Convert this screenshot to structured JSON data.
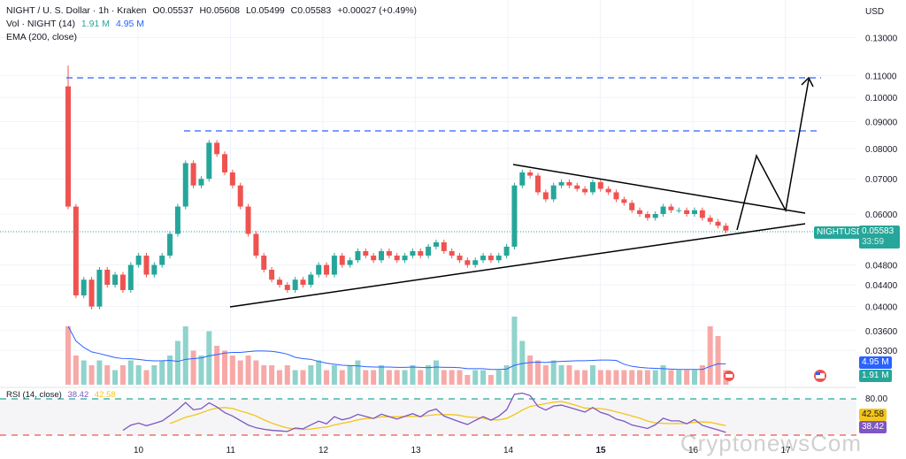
{
  "header": {
    "title": "NIGHT / U. S. Dollar · 1h · Kraken",
    "open": "O0.05537",
    "high": "H0.05608",
    "low": "L0.05499",
    "close": "C0.05583",
    "change": "+0.00027 (+0.49%)",
    "vol_label": "Vol · NIGHT (14)",
    "vol_value": "1.91 M",
    "vol_ma": "4.95 M",
    "ema_label": "EMA (200, close)",
    "rsi_label": "RSI (14, close)",
    "rsi_value": "38.42",
    "rsi_ma": "42.58"
  },
  "axis": {
    "currency": "USD",
    "price_ticks": [
      "0.13000",
      "0.11000",
      "0.10000",
      "0.09000",
      "0.08000",
      "0.07000",
      "0.06000",
      "0.04800",
      "0.04400",
      "0.04000",
      "0.03600",
      "0.03300"
    ],
    "rsi_tick": "80.00",
    "x_ticks": [
      "10",
      "11",
      "12",
      "13",
      "14",
      "15",
      "16",
      "17"
    ]
  },
  "last_price": {
    "symbol": "NIGHTUSD",
    "price": "0.05583",
    "countdown": "33:59"
  },
  "watermark": "CryptonewsCom",
  "colors": {
    "up": "#26a69a",
    "down": "#ef5350",
    "vol_up": "#8fd3cc",
    "vol_down": "#f7a9a7",
    "annot": "#2962ff",
    "rsi": "#7e57c2",
    "rsi_ma": "#f5c518"
  },
  "chart_data": {
    "type": "candlestick",
    "interval": "2h (approx)",
    "start_day": 9.25,
    "first_open": 0.105,
    "closes": [
      0.062,
      0.042,
      0.045,
      0.04,
      0.047,
      0.044,
      0.046,
      0.043,
      0.048,
      0.05,
      0.046,
      0.048,
      0.05,
      0.055,
      0.062,
      0.075,
      0.068,
      0.07,
      0.082,
      0.078,
      0.072,
      0.068,
      0.062,
      0.055,
      0.05,
      0.047,
      0.045,
      0.044,
      0.043,
      0.045,
      0.044,
      0.046,
      0.048,
      0.046,
      0.05,
      0.048,
      0.049,
      0.051,
      0.05,
      0.049,
      0.051,
      0.05,
      0.049,
      0.05,
      0.051,
      0.05,
      0.052,
      0.053,
      0.051,
      0.05,
      0.049,
      0.048,
      0.049,
      0.05,
      0.049,
      0.05,
      0.052,
      0.068,
      0.072,
      0.071,
      0.066,
      0.064,
      0.068,
      0.069,
      0.068,
      0.067,
      0.066,
      0.069,
      0.067,
      0.066,
      0.064,
      0.063,
      0.061,
      0.06,
      0.059,
      0.06,
      0.062,
      0.061,
      0.061,
      0.06,
      0.061,
      0.059,
      0.058,
      0.057,
      0.0558
    ],
    "volume_m": [
      12,
      6,
      5,
      4,
      5,
      4,
      3,
      4,
      5,
      4,
      3,
      4,
      5,
      6,
      9,
      12,
      7,
      6,
      11,
      8,
      7,
      6,
      5,
      6,
      5,
      4,
      4,
      3,
      4,
      3,
      3,
      4,
      5,
      3,
      4,
      3,
      4,
      5,
      3,
      3,
      4,
      3,
      3,
      3,
      4,
      3,
      4,
      5,
      3,
      3,
      3,
      2,
      3,
      3,
      2,
      3,
      4,
      14,
      9,
      6,
      5,
      4,
      5,
      4,
      4,
      3,
      3,
      4,
      3,
      3,
      3,
      3,
      3,
      3,
      3,
      3,
      4,
      3,
      3,
      3,
      3,
      4,
      12,
      10,
      3
    ],
    "levels": [
      0.108,
      0.086
    ],
    "ylabel": "USD"
  }
}
